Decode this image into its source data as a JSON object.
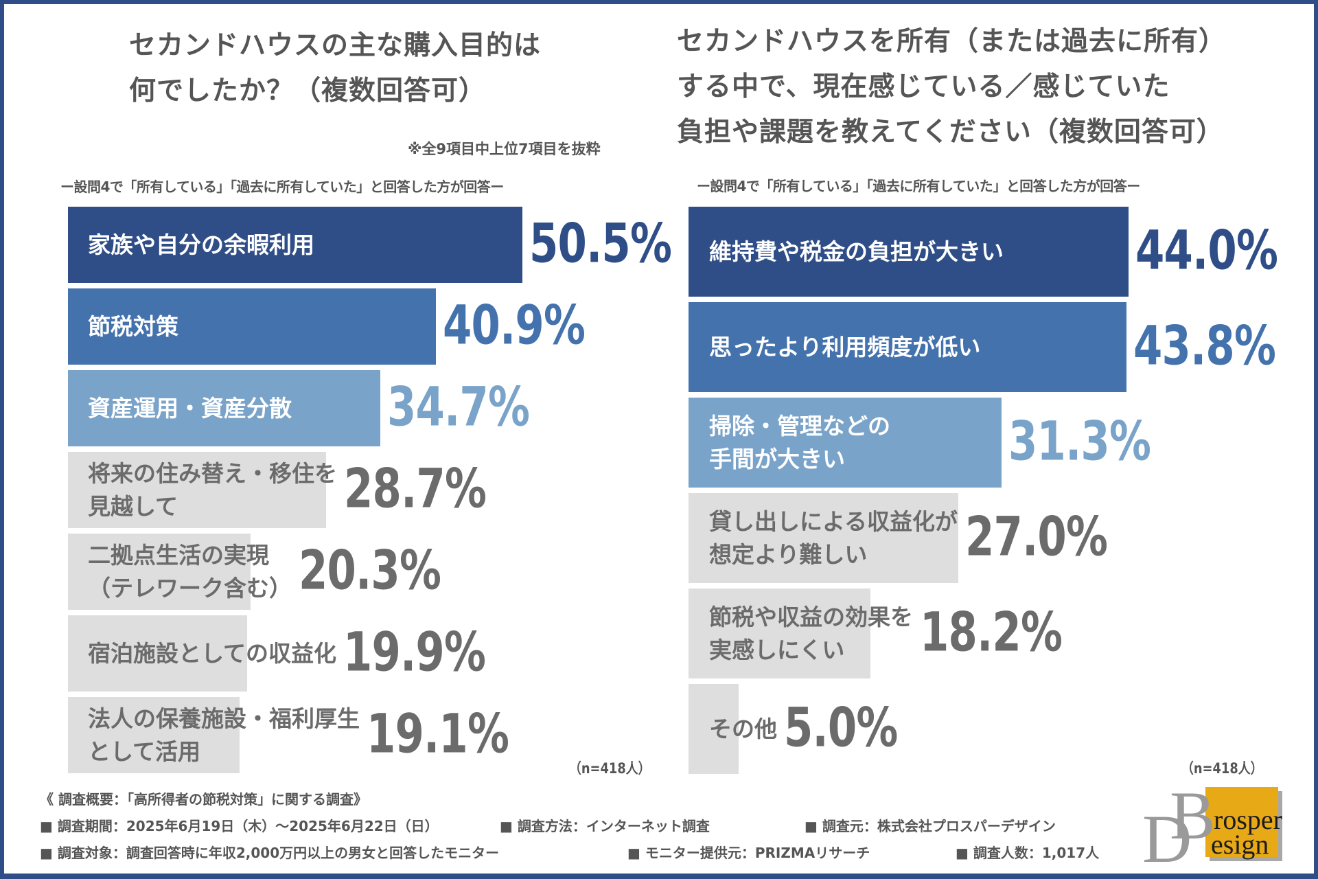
{
  "colors": {
    "frame": "#2f4e87",
    "bar_dark": "#2f4e87",
    "bar_mid": "#4472ac",
    "bar_light": "#79a3c8",
    "bar_gray": "#dedede",
    "text_gray": "#6b6b6b",
    "text_white": "#ffffff",
    "logo_orange": "#e8a917"
  },
  "left": {
    "title_lines": [
      "セカンドハウスの主な購入目的は",
      "何でしたか？（複数回答可）"
    ],
    "note": "※全9項目中上位7項目を抜粋",
    "subtitle": "ー設問4で「所有している」「過去に所有していた」と回答した方が回答ー",
    "n_label": "（n=418人）"
  },
  "right": {
    "title_lines": [
      "セカンドハウスを所有（または過去に所有）",
      "する中で、現在感じている／感じていた",
      "負担や課題を教えてください（複数回答可）"
    ],
    "subtitle": "ー設問4で「所有している」「過去に所有していた」と回答した方が回答ー",
    "n_label": "（n=418人）"
  },
  "chart_data": [
    {
      "type": "bar",
      "orientation": "horizontal",
      "title": "セカンドハウスの主な購入目的は何でしたか？（複数回答可）",
      "unit": "%",
      "categories": [
        [
          "家族や自分の余暇利用"
        ],
        [
          "節税対策"
        ],
        [
          "資産運用・資産分散"
        ],
        [
          "将来の住み替え・移住を",
          "見越して"
        ],
        [
          "二拠点生活の実現",
          "（テレワーク含む）"
        ],
        [
          "宿泊施設としての収益化"
        ],
        [
          "法人の保養施設・福利厚生",
          "として活用"
        ]
      ],
      "values": [
        50.5,
        40.9,
        34.7,
        28.7,
        20.3,
        19.9,
        19.1
      ],
      "value_labels": [
        "50.5%",
        "40.9%",
        "34.7%",
        "28.7%",
        "20.3%",
        "19.9%",
        "19.1%"
      ],
      "styles": [
        "dark",
        "mid",
        "light",
        "gray",
        "gray",
        "gray",
        "gray"
      ],
      "xlim": [
        0,
        50.5
      ],
      "n": 418
    },
    {
      "type": "bar",
      "orientation": "horizontal",
      "title": "セカンドハウスを所有（または過去に所有）する中で、現在感じている／感じていた負担や課題を教えてください（複数回答可）",
      "unit": "%",
      "categories": [
        [
          "維持費や税金の負担が大きい"
        ],
        [
          "思ったより利用頻度が低い"
        ],
        [
          "掃除・管理などの",
          "手間が大きい"
        ],
        [
          "貸し出しによる収益化が",
          "想定より難しい"
        ],
        [
          "節税や収益の効果を",
          "実感しにくい"
        ],
        [
          "その他"
        ]
      ],
      "values": [
        44.0,
        43.8,
        31.3,
        27.0,
        18.2,
        5.0
      ],
      "value_labels": [
        "44.0%",
        "43.8%",
        "31.3%",
        "27.0%",
        "18.2%",
        "5.0%"
      ],
      "styles": [
        "dark",
        "mid",
        "light",
        "gray",
        "gray",
        "gray"
      ],
      "xlim": [
        0,
        44.0
      ],
      "n": 418
    }
  ],
  "footer": {
    "title": "《 調査概要：「高所得者の節税対策」に関する調査》",
    "items": [
      {
        "text": "■ 調査期間：2025年6月19日（木）～2025年6月22日（日）"
      },
      {
        "text": "■ 調査方法：インターネット調査"
      },
      {
        "text": "■ 調査元：株式会社プロスパーデザイン"
      },
      {
        "text": "■ 調査対象：調査回答時に年収2,000万円以上の男女と回答したモニター"
      },
      {
        "text": "■ モニター提供元：PRIZMAリサーチ"
      },
      {
        "text": "■ 調査人数：1,017人"
      }
    ]
  },
  "logo": {
    "letters": [
      "B",
      "D"
    ],
    "words": [
      "rosper",
      "esign"
    ]
  }
}
